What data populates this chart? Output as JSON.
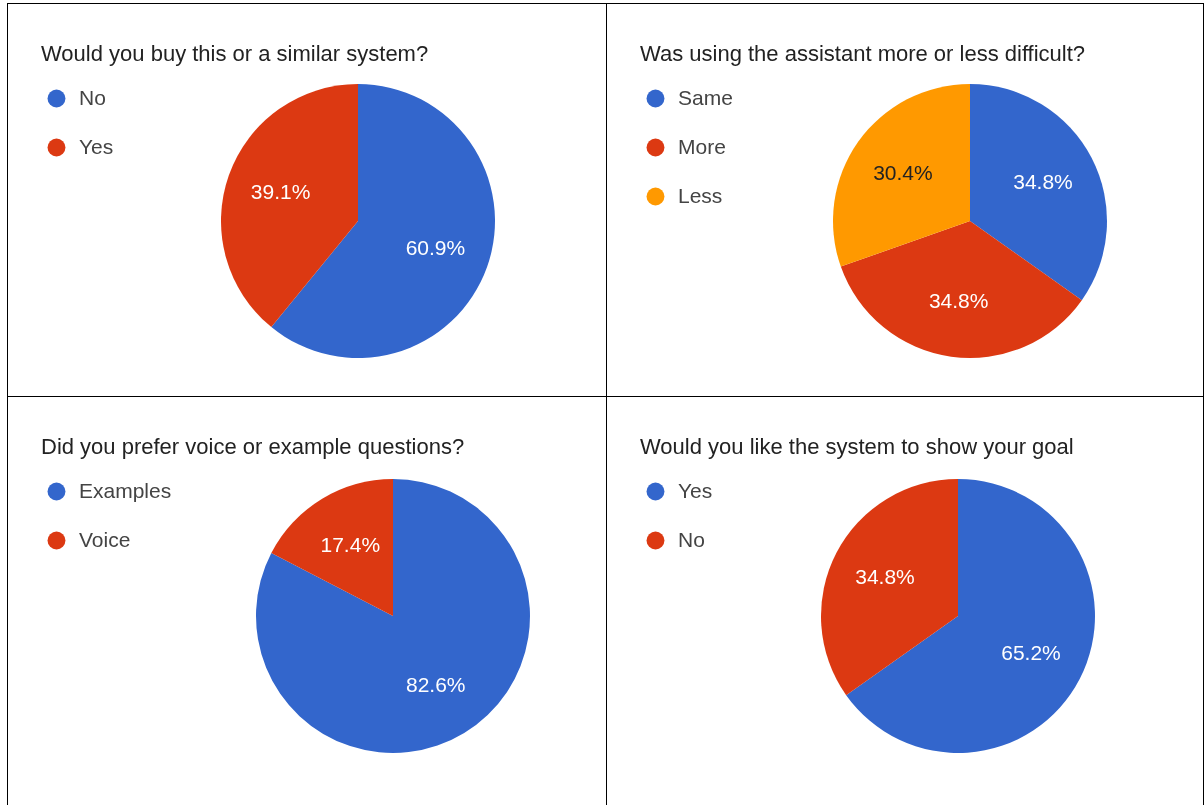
{
  "chart_data": [
    {
      "type": "pie",
      "title": "Would you buy this or a similar system?",
      "categories": [
        "No",
        "Yes"
      ],
      "values": [
        60.9,
        39.1
      ],
      "colors": [
        "#3366cc",
        "#dc3912"
      ],
      "value_labels": [
        "60.9%",
        "39.1%"
      ],
      "legend": "top left"
    },
    {
      "type": "pie",
      "title": "Was using the assistant more or less difficult?",
      "categories": [
        "Same",
        "More",
        "Less"
      ],
      "values": [
        34.8,
        34.8,
        30.4
      ],
      "colors": [
        "#3366cc",
        "#dc3912",
        "#ff9900"
      ],
      "value_labels": [
        "34.8%",
        "34.8%",
        "30.4%"
      ],
      "legend": "top left"
    },
    {
      "type": "pie",
      "title": "Did you prefer voice or example questions?",
      "categories": [
        "Examples",
        "Voice"
      ],
      "values": [
        82.6,
        17.4
      ],
      "colors": [
        "#3366cc",
        "#dc3912"
      ],
      "value_labels": [
        "82.6%",
        "17.4%"
      ],
      "legend": "top left"
    },
    {
      "type": "pie",
      "title": "Would you like the system to show your goal",
      "categories": [
        "Yes",
        "No"
      ],
      "values": [
        65.2,
        34.8
      ],
      "colors": [
        "#3366cc",
        "#dc3912"
      ],
      "value_labels": [
        "65.2%",
        "34.8%"
      ],
      "legend": "top left"
    }
  ]
}
